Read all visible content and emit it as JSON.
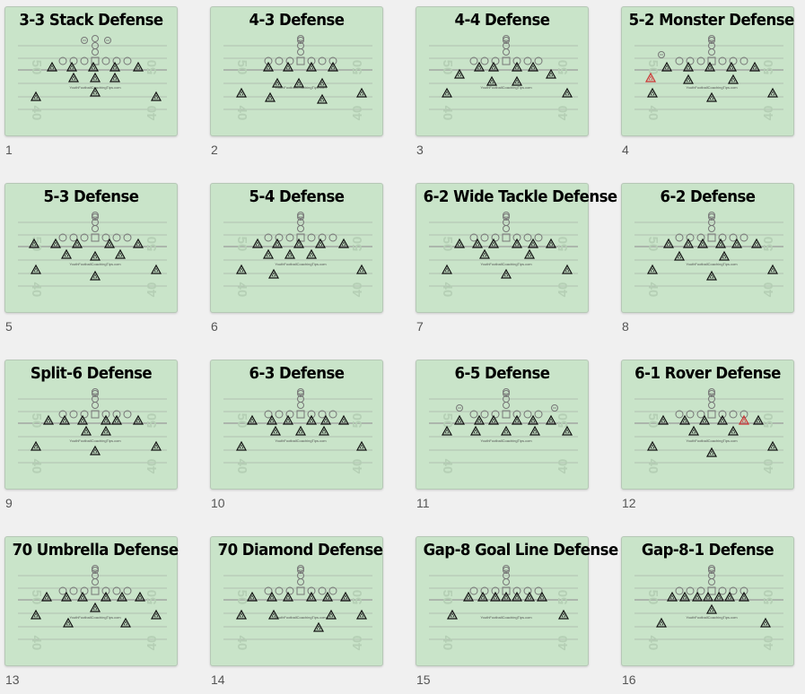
{
  "colors": {
    "field": "#c9e4c9",
    "lineman": "#777777",
    "highlight": "#cc3333"
  },
  "watermark": "YouthFootballCoachingTips.com",
  "yard_numbers": [
    "50",
    "40",
    "50",
    "40"
  ],
  "slides": [
    {
      "num": "1",
      "title": "3-3 Stack Defense"
    },
    {
      "num": "2",
      "title": "4-3 Defense"
    },
    {
      "num": "3",
      "title": "4-4 Defense"
    },
    {
      "num": "4",
      "title": "5-2 Monster Defense"
    },
    {
      "num": "5",
      "title": "5-3 Defense"
    },
    {
      "num": "6",
      "title": "5-4 Defense"
    },
    {
      "num": "7",
      "title": "6-2 Wide Tackle Defense"
    },
    {
      "num": "8",
      "title": "6-2 Defense"
    },
    {
      "num": "9",
      "title": "Split-6 Defense"
    },
    {
      "num": "10",
      "title": "6-3 Defense"
    },
    {
      "num": "11",
      "title": "6-5 Defense"
    },
    {
      "num": "12",
      "title": "6-1 Rover Defense"
    },
    {
      "num": "13",
      "title": "70 Umbrella Defense"
    },
    {
      "num": "14",
      "title": "70 Diamond Defense"
    },
    {
      "num": "15",
      "title": "Gap-8 Goal Line Defense"
    },
    {
      "num": "16",
      "title": "Gap-8-1 Defense"
    }
  ]
}
